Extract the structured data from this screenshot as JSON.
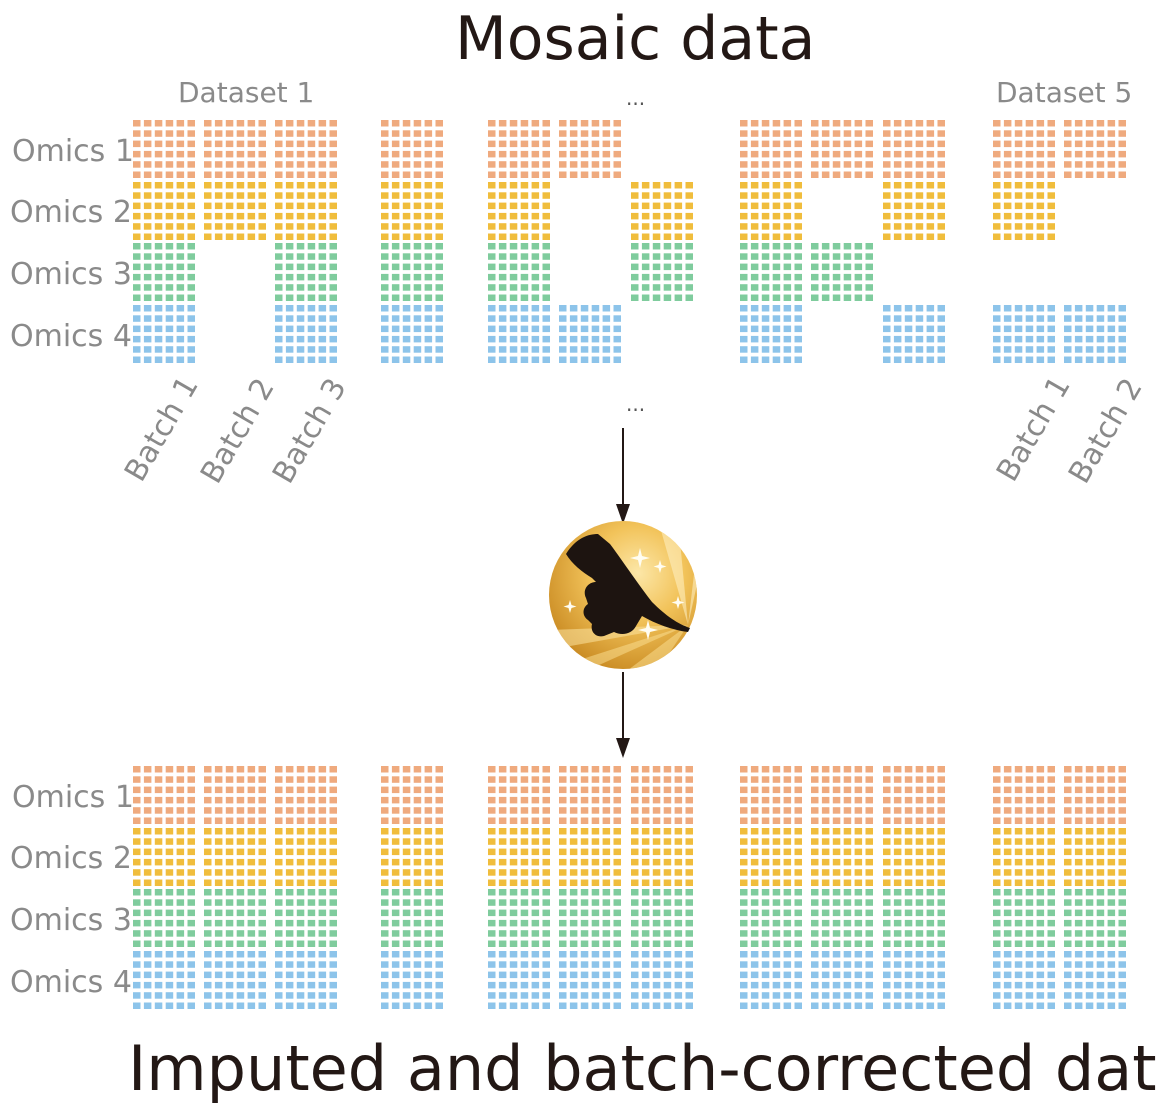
{
  "title": "Mosaic data",
  "bottom_title": "Imputed and batch-corrected data",
  "dataset_labels": [
    "Dataset 1",
    "Dataset 5"
  ],
  "ellipsis_top": "...",
  "ellipsis_mid": "...",
  "omics_labels": [
    "Omics 1",
    "Omics 2",
    "Omics 3",
    "Omics 4"
  ],
  "batch_labels_left": [
    "Batch 1",
    "Batch 2",
    "Batch 3"
  ],
  "batch_labels_right": [
    "Batch 1",
    "Batch 2"
  ],
  "colors": {
    "omics1": "#EFAA7E",
    "omics2": "#F0BD3C",
    "omics3": "#7FCC9D",
    "omics4": "#8DC4EA",
    "text_gray": "#8a8a8a",
    "title": "#231815",
    "arrow": "#231815"
  },
  "icon": "midas-gold-hand-icon",
  "mosaic_presence": [
    [
      1,
      1,
      1,
      1
    ],
    [
      1,
      1,
      0,
      0
    ],
    [
      1,
      1,
      1,
      1
    ],
    [
      1,
      1,
      1,
      1
    ],
    [
      1,
      1,
      1,
      1
    ],
    [
      1,
      0,
      0,
      1
    ],
    [
      0,
      1,
      1,
      0
    ],
    [
      1,
      1,
      1,
      1
    ],
    [
      1,
      0,
      1,
      0
    ],
    [
      1,
      1,
      0,
      1
    ],
    [
      1,
      1,
      0,
      1
    ],
    [
      1,
      0,
      0,
      1
    ]
  ]
}
